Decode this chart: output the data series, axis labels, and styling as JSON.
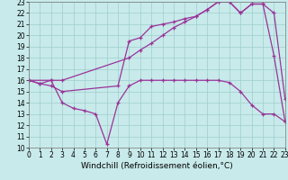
{
  "xlabel": "Windchill (Refroidissement éolien,°C)",
  "xlim": [
    0,
    23
  ],
  "ylim": [
    10,
    23
  ],
  "xticks": [
    0,
    1,
    2,
    3,
    4,
    5,
    6,
    7,
    8,
    9,
    10,
    11,
    12,
    13,
    14,
    15,
    16,
    17,
    18,
    19,
    20,
    21,
    22,
    23
  ],
  "yticks": [
    10,
    11,
    12,
    13,
    14,
    15,
    16,
    17,
    18,
    19,
    20,
    21,
    22,
    23
  ],
  "background_color": "#c8eaea",
  "grid_color": "#9ecece",
  "line_color": "#993399",
  "line1_x": [
    0,
    1,
    2,
    3,
    9,
    10,
    11,
    12,
    13,
    14,
    15,
    16,
    17,
    18,
    19,
    20,
    21,
    22,
    23
  ],
  "line1_y": [
    16,
    15.7,
    16,
    16,
    18,
    18.7,
    19.3,
    20.0,
    20.7,
    21.2,
    21.7,
    22.3,
    23.0,
    23.0,
    22.0,
    22.8,
    22.8,
    22.0,
    14.3
  ],
  "line2_x": [
    0,
    1,
    2,
    3,
    8,
    9,
    10,
    11,
    12,
    13,
    14,
    15,
    16,
    17,
    18,
    19,
    20,
    21,
    22,
    23
  ],
  "line2_y": [
    16,
    15.7,
    15.5,
    15.0,
    15.5,
    19.5,
    19.8,
    20.8,
    21.0,
    21.2,
    21.5,
    21.7,
    22.3,
    23.0,
    23.0,
    22.0,
    22.8,
    22.8,
    18.2,
    12.3
  ],
  "line3_x": [
    0,
    2,
    3,
    4,
    5,
    6,
    7,
    8,
    9,
    10,
    11,
    12,
    13,
    14,
    15,
    16,
    17,
    18,
    19,
    20,
    21,
    22,
    23
  ],
  "line3_y": [
    16,
    16,
    14,
    13.5,
    13.3,
    13.0,
    10.3,
    14.0,
    15.5,
    16.0,
    16.0,
    16.0,
    16.0,
    16.0,
    16.0,
    16.0,
    16.0,
    15.8,
    15.0,
    13.8,
    13.0,
    13.0,
    12.3
  ],
  "tick_fontsize": 5.5,
  "label_fontsize": 6.5
}
